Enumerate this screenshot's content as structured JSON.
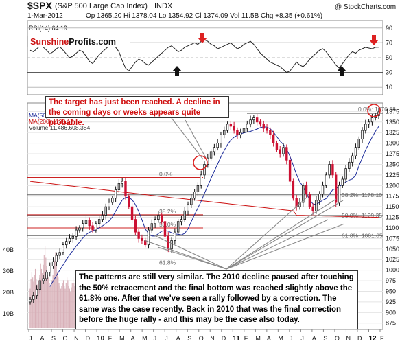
{
  "header": {
    "symbol": "$SPX",
    "name": "(S&P 500 Large Cap Index)",
    "exchange": "INDX",
    "credit": "@ StockCharts.com",
    "date": "1-Mar-2012",
    "quote": "Op 1365.20  Hi 1378.04  Lo 1354.92  Cl 1374.09  Vol 11.5B  Chg +8.35 (+0.61%)"
  },
  "logo": {
    "part1": "Sunshine",
    "part2": "Profits.com"
  },
  "rsi": {
    "label": "RSI(14) 64.19",
    "ticks": [
      "90",
      "70",
      "50",
      "30",
      "10"
    ]
  },
  "legend": {
    "ma50": "MA(50) 1275.59",
    "ma200": "MA(200) 1133.17",
    "volume": "Volume 11,486,608,384"
  },
  "annotations": {
    "top": "The target has just been reached. A decline in the coming days or weeks appears quite probable.",
    "bottom": "The patterns are still very similar. The 2010 decline paused after touching the 50% retracement and the final bottom was reached slightly above the 61.8% one. After that we've seen a rally followed by a correction. The same was the case recently. Back in 2010 that was the final correction before the huge rally - and this may be the case also today."
  },
  "fib_labels": {
    "r0_2011": "0.0%",
    "r382_2011": "38.2%: 1178.10",
    "r50_2011": "50.0%: 1129.35",
    "r618_2011": "61.8%: 1081.65",
    "r0_2010": "0.0%",
    "r382_2010": "38.2%",
    "r50_2010": "50.0%",
    "r618_2010": "61.8%",
    "r1000": "0.0%: 1370.58"
  },
  "y_axis_labels": [
    "1375",
    "1350",
    "1325",
    "1300",
    "1275",
    "1250",
    "1225",
    "1200",
    "1175",
    "1150",
    "1125",
    "1100",
    "1075",
    "1050",
    "1025",
    "1000",
    "975",
    "950",
    "925",
    "900",
    "875"
  ],
  "volume_axis_labels": [
    "40B",
    "30B",
    "20B",
    "10B"
  ],
  "x_axis_labels": [
    "J",
    "A",
    "S",
    "O",
    "N",
    "D",
    "10",
    "F",
    "M",
    "A",
    "M",
    "J",
    "J",
    "A",
    "S",
    "O",
    "N",
    "D",
    "11",
    "F",
    "M",
    "A",
    "M",
    "J",
    "J",
    "A",
    "S",
    "O",
    "N",
    "D",
    "12",
    "F"
  ],
  "colors": {
    "up": "#111111",
    "down": "#cc1133",
    "ma50": "#1a2a9a",
    "ma200": "#cc1111",
    "rsi": "#222222",
    "arrow_red": "#dd2222",
    "arrow_black": "#111111",
    "volume": "#d8b0b8"
  },
  "chart_data": {
    "type": "line",
    "title": "$SPX (S&P 500 Large Cap Index) INDX",
    "ylim": [
      860,
      1395
    ],
    "series": [
      {
        "name": "$SPX",
        "close": [
          931,
          940,
          955,
          975,
          980,
          995,
          1010,
          1020,
          1035,
          1042,
          1060,
          1068,
          1075,
          1080,
          1095,
          1100,
          1110,
          1118,
          1105,
          1095,
          1110,
          1120,
          1130,
          1150,
          1160,
          1170,
          1190,
          1205,
          1210,
          1175,
          1150,
          1120,
          1090,
          1075,
          1070,
          1060,
          1095,
          1110,
          1120,
          1130,
          1115,
          1080,
          1050,
          1070,
          1090,
          1115,
          1120,
          1140,
          1155,
          1170,
          1185,
          1200,
          1225,
          1250,
          1265,
          1280,
          1290,
          1300,
          1320,
          1330,
          1345,
          1340,
          1330,
          1320,
          1325,
          1335,
          1345,
          1355,
          1360,
          1350,
          1345,
          1335,
          1330,
          1320,
          1300,
          1285,
          1275,
          1290,
          1260,
          1210,
          1170,
          1150,
          1160,
          1200,
          1180,
          1150,
          1140,
          1165,
          1180,
          1200,
          1225,
          1250,
          1225,
          1160,
          1200,
          1215,
          1240,
          1255,
          1270,
          1290,
          1310,
          1330,
          1345,
          1350,
          1360,
          1365,
          1374
        ]
      },
      {
        "name": "MA(50) 1275.59"
      },
      {
        "name": "MA(200) 1133.17"
      },
      {
        "name": "Volume 11,486,608,384"
      }
    ],
    "rsi_ylim": [
      0,
      100
    ],
    "rsi_values": [
      60,
      58,
      62,
      66,
      64,
      60,
      55,
      58,
      62,
      65,
      60,
      55,
      50,
      52,
      56,
      60,
      58,
      52,
      45,
      42,
      48,
      54,
      58,
      62,
      66,
      68,
      64,
      58,
      46,
      36,
      32,
      38,
      44,
      48,
      46,
      42,
      40,
      44,
      48,
      52,
      56,
      60,
      64,
      66,
      62,
      58,
      60,
      64,
      66,
      68,
      70,
      68,
      72,
      74,
      72,
      68,
      66,
      62,
      64,
      66,
      68,
      70,
      66,
      62,
      64,
      68,
      70,
      72,
      68,
      62,
      56,
      52,
      48,
      44,
      42,
      40,
      38,
      34,
      30,
      32,
      38,
      44,
      40,
      38,
      42,
      48,
      52,
      56,
      60,
      62,
      58,
      52,
      46,
      40,
      36,
      42,
      48,
      54,
      58,
      56,
      60,
      62,
      64,
      63,
      62,
      64,
      64.19
    ],
    "volume_values": [
      3.2,
      2.8,
      3.5,
      4.0,
      3.6,
      3.3,
      3.8,
      4.2,
      3.5,
      3.1,
      3.0,
      3.4,
      3.8,
      4.6,
      4.2,
      3.9,
      4.5,
      5.2,
      5.8,
      5.0,
      4.4,
      3.8,
      3.6,
      3.2,
      3.0,
      2.9,
      3.4,
      3.8,
      4.2,
      4.8,
      5.4,
      4.6,
      4.0,
      3.6,
      3.2,
      3.0,
      2.8,
      3.0,
      3.2,
      3.4,
      3.0,
      2.8,
      3.2,
      3.6,
      3.4,
      3.0,
      2.8,
      2.6,
      2.9,
      3.2,
      3.6,
      3.2,
      3.0,
      2.8,
      3.0,
      3.4,
      3.8,
      4.1
    ],
    "fib_levels": [
      1370.58,
      1178.1,
      1129.35,
      1081.65
    ],
    "fib_levels_2010": [
      1219,
      1131,
      1100,
      1010
    ],
    "rsi_markers_down": [
      "Nov 2010",
      "Feb 2012"
    ],
    "rsi_markers_up": [
      "Jul 2010",
      "Oct 2011"
    ],
    "highlight_circles": [
      "Nov 2010",
      "Feb 2012"
    ]
  }
}
